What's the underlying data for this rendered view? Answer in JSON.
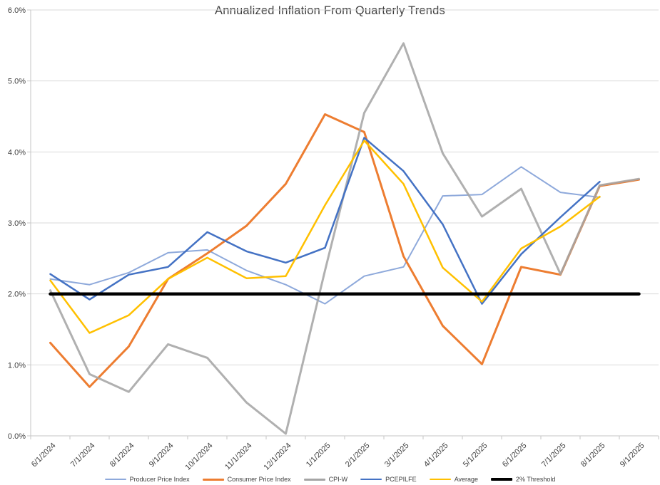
{
  "title": "Annualized Inflation From Quarterly Trends",
  "colors": {
    "grid": "#d9d9d9",
    "axis": "#c6c6c6",
    "text": "#404040",
    "title_text": "#3f3f3f",
    "background": "#ffffff"
  },
  "chart_data": {
    "type": "line",
    "title": "Annualized Inflation From Quarterly Trends",
    "xlabel": "",
    "ylabel": "",
    "ylim": [
      0,
      6
    ],
    "grid": true,
    "legend_position": "bottom",
    "yticks": [
      "0.0%",
      "1.0%",
      "2.0%",
      "3.0%",
      "4.0%",
      "5.0%",
      "6.0%"
    ],
    "categories": [
      "6/1/2024",
      "7/1/2024",
      "8/1/2024",
      "9/1/2024",
      "10/1/2024",
      "11/1/2024",
      "12/1/2024",
      "1/1/2025",
      "2/1/2025",
      "3/1/2025",
      "4/1/2025",
      "5/1/2025",
      "6/1/2025",
      "7/1/2025",
      "8/1/2025",
      "9/1/2025"
    ],
    "series": [
      {
        "name": "Producer Price Index",
        "color": "#8ea9db",
        "width": 2,
        "values": [
          2.21,
          2.13,
          2.3,
          2.58,
          2.62,
          2.33,
          2.13,
          1.86,
          2.25,
          2.38,
          3.38,
          3.4,
          3.79,
          3.43,
          3.36,
          null
        ]
      },
      {
        "name": "Consumer Price Index",
        "color": "#ed7d31",
        "width": 3,
        "values": [
          1.31,
          0.69,
          1.26,
          2.21,
          2.57,
          2.96,
          3.55,
          4.53,
          4.28,
          2.53,
          1.55,
          1.01,
          2.38,
          2.27,
          3.52,
          3.61
        ]
      },
      {
        "name": "CPI-W",
        "color": "#a5a5a5",
        "width": 3,
        "opacity": 0.88,
        "values": [
          2.05,
          0.87,
          0.62,
          1.29,
          1.1,
          0.47,
          0.03,
          2.33,
          4.55,
          5.53,
          3.98,
          3.09,
          3.48,
          2.28,
          3.53,
          3.62
        ]
      },
      {
        "name": "PCEPILFE",
        "color": "#4472c4",
        "width": 2.5,
        "values": [
          2.28,
          1.92,
          2.27,
          2.38,
          2.87,
          2.6,
          2.44,
          2.65,
          4.2,
          3.73,
          2.98,
          1.86,
          2.56,
          3.08,
          3.58,
          null
        ]
      },
      {
        "name": "Average",
        "color": "#ffc000",
        "width": 2.5,
        "values": [
          2.19,
          1.45,
          1.7,
          2.21,
          2.51,
          2.22,
          2.25,
          3.25,
          4.16,
          3.55,
          2.37,
          1.89,
          2.64,
          2.95,
          3.37,
          null
        ]
      },
      {
        "name": "2% Threshold",
        "color": "#000000",
        "width": 4.5,
        "values": [
          2.0,
          2.0,
          2.0,
          2.0,
          2.0,
          2.0,
          2.0,
          2.0,
          2.0,
          2.0,
          2.0,
          2.0,
          2.0,
          2.0,
          2.0,
          2.0
        ]
      }
    ]
  }
}
